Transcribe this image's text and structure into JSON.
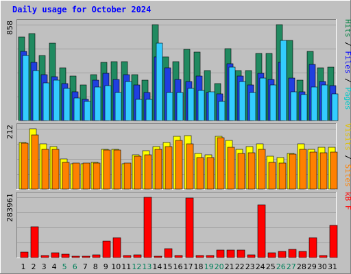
{
  "chart_data": {
    "type": "bar",
    "title": "Daily usage for October 2024",
    "categories": [
      "1",
      "2",
      "3",
      "4",
      "5",
      "6",
      "7",
      "8",
      "9",
      "10",
      "11",
      "12",
      "13",
      "14",
      "15",
      "16",
      "17",
      "18",
      "19",
      "20",
      "21",
      "22",
      "23",
      "24",
      "25",
      "26",
      "27",
      "28",
      "29",
      "30",
      "31"
    ],
    "weekend_days": [
      "5",
      "6",
      "12",
      "13",
      "19",
      "20",
      "26",
      "27"
    ],
    "panels": [
      {
        "id": "hits",
        "max_label": "858",
        "max": 858,
        "labels": [
          {
            "text": "Pages",
            "color": "#00c8c8"
          },
          {
            "text": "Files",
            "color": "#0000ff"
          },
          {
            "text": "Hits",
            "color": "#008040"
          }
        ],
        "separator": "/",
        "series": [
          {
            "name": "Hits",
            "color": "#208a60",
            "values": [
              750,
              780,
              580,
              690,
              470,
              400,
              320,
              410,
              520,
              530,
              530,
              410,
              360,
              858,
              570,
              530,
              640,
              610,
              450,
              330,
              645,
              450,
              450,
              600,
              600,
              858,
              720,
              360,
              620,
              470,
              480
            ]
          },
          {
            "name": "Files",
            "color": "#1f3fe0",
            "values": [
              620,
              520,
              410,
              390,
              330,
              260,
              190,
              360,
              420,
              370,
              410,
              320,
              250,
              570,
              470,
              370,
              350,
              400,
              250,
              240,
              510,
              400,
              320,
              420,
              370,
              520,
              380,
              260,
              500,
              350,
              310
            ]
          },
          {
            "name": "Pages",
            "color": "#33ccff",
            "values": [
              580,
              450,
              340,
              360,
              290,
              200,
              170,
              300,
              310,
              250,
              350,
              190,
              190,
              690,
              250,
              250,
              290,
              270,
              260,
              170,
              480,
              350,
              250,
              380,
              320,
              720,
              260,
              230,
              300,
              320,
              240
            ]
          }
        ]
      },
      {
        "id": "visits",
        "max_label": "212",
        "max": 212,
        "labels": [
          {
            "text": "Sites",
            "color": "#ff8000"
          },
          {
            "text": "Visits",
            "color": "#e0c000"
          }
        ],
        "separator": "/",
        "series": [
          {
            "name": "Visits",
            "color": "#ffff00",
            "values": [
              165,
              212,
              160,
              150,
              105,
              90,
              90,
              95,
              140,
              140,
              90,
              120,
              135,
              150,
              165,
              185,
              188,
              125,
              120,
              185,
              170,
              140,
              150,
              160,
              115,
              110,
              125,
              160,
              140,
              148,
              148
            ]
          },
          {
            "name": "Sites",
            "color": "#ff8000",
            "values": [
              162,
              190,
              140,
              140,
              95,
              92,
              92,
              92,
              138,
              138,
              92,
              115,
              120,
              140,
              150,
              170,
              158,
              110,
              110,
              180,
              148,
              126,
              128,
              140,
              95,
              92,
              122,
              140,
              130,
              128,
              130
            ]
          }
        ]
      },
      {
        "id": "kbytes",
        "max_label": "283961",
        "max": 283961,
        "labels": [
          {
            "text": "kB F",
            "color": "#ff0000"
          }
        ],
        "separator": "",
        "series": [
          {
            "name": "kB F",
            "color": "#ff0000",
            "values": [
              25000,
              145000,
              10000,
              22000,
              15000,
              5000,
              5000,
              13000,
              77000,
              92000,
              10000,
              13000,
              283961,
              6000,
              43000,
              11000,
              280000,
              11000,
              11000,
              35000,
              35000,
              35000,
              12000,
              248000,
              24000,
              29000,
              40000,
              28000,
              95000,
              11000,
              152000
            ]
          }
        ]
      }
    ]
  }
}
